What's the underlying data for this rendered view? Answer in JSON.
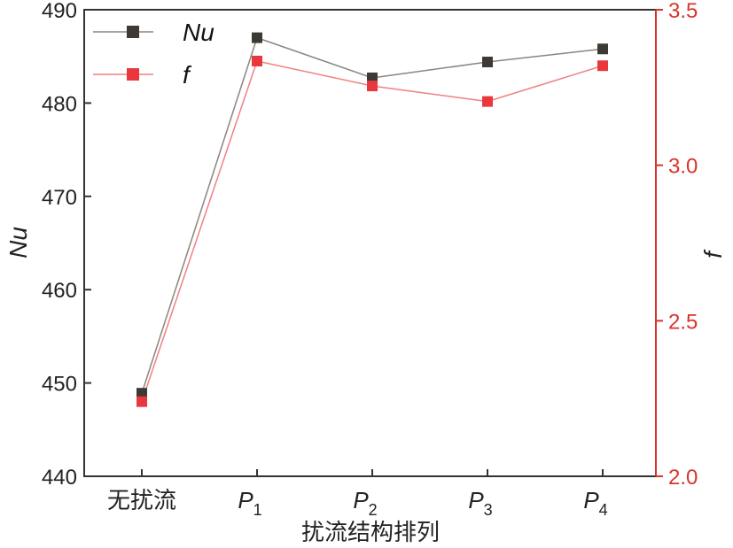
{
  "chart_data": {
    "type": "line",
    "title": "",
    "xlabel": "扰流结构排列",
    "ylabel": "Nu",
    "y2label": "f",
    "categories": [
      "无扰流",
      "P1",
      "P2",
      "P3",
      "P4"
    ],
    "category_labels": [
      {
        "main": "无扰流",
        "sub": ""
      },
      {
        "main": "P",
        "sub": "1"
      },
      {
        "main": "P",
        "sub": "2"
      },
      {
        "main": "P",
        "sub": "3"
      },
      {
        "main": "P",
        "sub": "4"
      }
    ],
    "ylim": [
      440,
      490
    ],
    "y_ticks": [
      "440",
      "450",
      "460",
      "470",
      "480",
      "490"
    ],
    "y2lim": [
      2.0,
      3.5
    ],
    "y2_ticks": [
      "2.0",
      "2.5",
      "3.0",
      "3.5"
    ],
    "legend_position": "top-left",
    "series": [
      {
        "name": "Nu",
        "axis": "left",
        "color": "#3d3935",
        "line_color": "#8a8580",
        "values": [
          448.9,
          487.0,
          482.7,
          484.4,
          485.8
        ]
      },
      {
        "name": "f",
        "axis": "right",
        "color": "#e8383d",
        "line_color": "#f08080",
        "values": [
          2.24,
          3.335,
          3.255,
          3.205,
          3.32
        ]
      }
    ],
    "right_axis_color": "#d9342b"
  }
}
